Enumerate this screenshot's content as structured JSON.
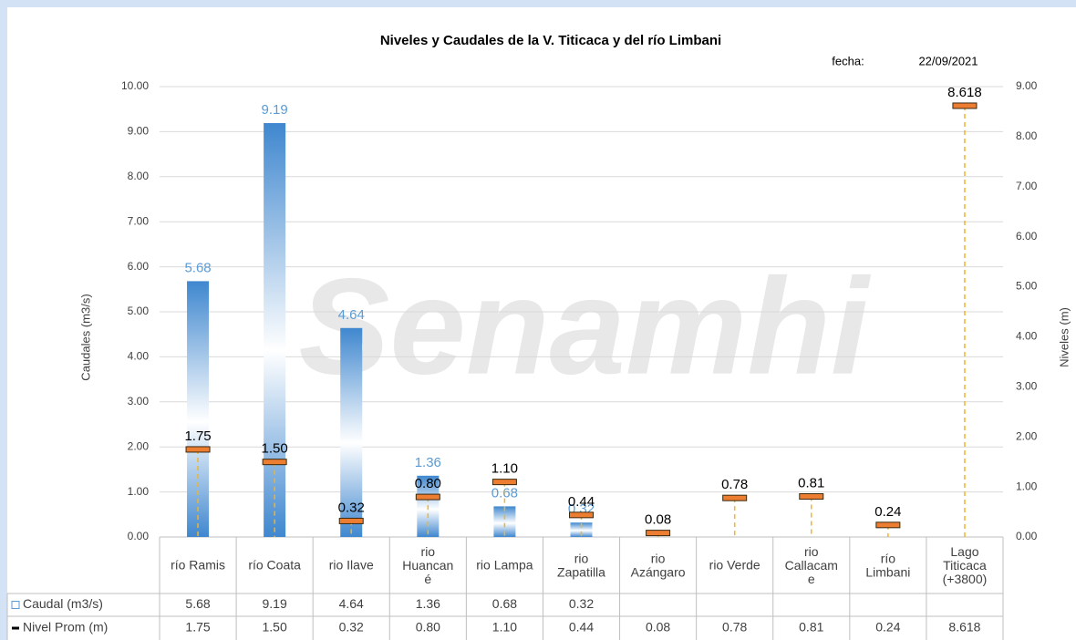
{
  "chart_data": {
    "type": "bar-marker",
    "title": "Niveles y Caudales de la V. Titicaca y del río Limbani",
    "date_label": "fecha:",
    "date": "22/09/2021",
    "watermark": "Senamhi",
    "y_title": "Caudales (m3/s)",
    "y2_title": "Niveles (m)",
    "categories": [
      "río Ramis",
      "río Coata",
      "rio Ilave",
      "rio\nHuancan\né",
      "rio Lampa",
      "rio\nZapatilla",
      "rio\nAzángaro",
      "rio Verde",
      "rio\nCallacam\ne",
      "río\nLimbani",
      "Lago\nTiticaca\n(+3800)"
    ],
    "series": [
      {
        "name": "Caudal (m3/s)",
        "color": "#5b9bd5",
        "values": [
          5.68,
          9.19,
          4.64,
          1.36,
          0.68,
          0.32,
          null,
          null,
          null,
          null,
          null
        ],
        "value_labels": [
          "5.68",
          "9.19",
          "4.64",
          "1.36",
          "0.68",
          "0.32",
          null,
          null,
          null,
          null,
          null
        ]
      },
      {
        "name": "Nivel Prom (m)",
        "color": "#ed7d31",
        "axis": "y2",
        "values": [
          1.75,
          1.5,
          0.32,
          0.8,
          1.1,
          0.44,
          0.08,
          0.78,
          0.81,
          0.24,
          8.618
        ],
        "value_labels": [
          "1.75",
          "1.50",
          "0.32",
          "0.80",
          "1.10",
          "0.44",
          "0.08",
          "0.78",
          "0.81",
          "0.24",
          "8.618"
        ]
      }
    ],
    "ylim": [
      0,
      10
    ],
    "yticks": [
      {
        "value": 0,
        "label": "0.00"
      },
      {
        "value": 1,
        "label": "1.00"
      },
      {
        "value": 2,
        "label": "2.00"
      },
      {
        "value": 3,
        "label": "3.00"
      },
      {
        "value": 4,
        "label": "4.00"
      },
      {
        "value": 5,
        "label": "5.00"
      },
      {
        "value": 6,
        "label": "6.00"
      },
      {
        "value": 7,
        "label": "7.00"
      },
      {
        "value": 8,
        "label": "8.00"
      },
      {
        "value": 9,
        "label": "9.00"
      },
      {
        "value": 10,
        "label": "10.00"
      }
    ],
    "y2lim": [
      0,
      9
    ],
    "y2ticks": [
      {
        "value": 0,
        "label": "0.00"
      },
      {
        "value": 1,
        "label": "1.00"
      },
      {
        "value": 2,
        "label": "2.00"
      },
      {
        "value": 3,
        "label": "3.00"
      },
      {
        "value": 4,
        "label": "4.00"
      },
      {
        "value": 5,
        "label": "5.00"
      },
      {
        "value": 6,
        "label": "6.00"
      },
      {
        "value": 7,
        "label": "7.00"
      },
      {
        "value": 8,
        "label": "8.00"
      },
      {
        "value": 9,
        "label": "9.00"
      }
    ],
    "grid": true
  }
}
